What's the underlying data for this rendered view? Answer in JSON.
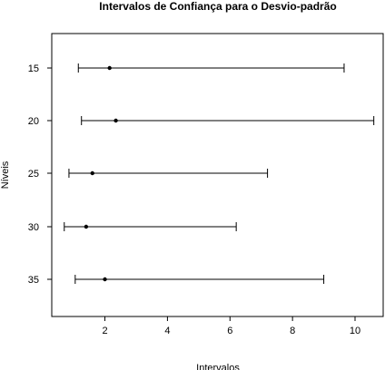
{
  "chart_data": {
    "type": "interval",
    "title": "Intervalos de Confiança para o Desvio-padrão",
    "xlabel": "Intervalos",
    "ylabel": "Níveis",
    "xlim": [
      0.3,
      10.9
    ],
    "x_ticks": [
      2,
      4,
      6,
      8,
      10
    ],
    "categories": [
      "15",
      "20",
      "25",
      "30",
      "35"
    ],
    "series": [
      {
        "estimates": [
          2.15,
          2.35,
          1.6,
          1.4,
          2.0
        ],
        "lower": [
          1.15,
          1.25,
          0.85,
          0.7,
          1.05
        ],
        "upper": [
          9.65,
          10.6,
          7.2,
          6.2,
          9.0
        ]
      }
    ],
    "grid": false,
    "legend": "none"
  }
}
